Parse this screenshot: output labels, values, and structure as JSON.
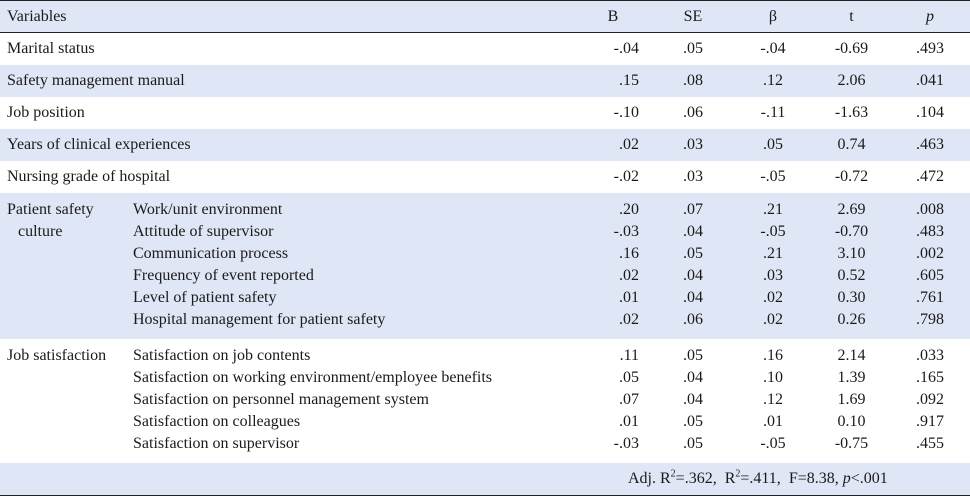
{
  "headers": {
    "variables": "Variables",
    "B": "B",
    "SE": "SE",
    "beta": "β",
    "t": "t",
    "p": "p"
  },
  "rows": [
    {
      "variable": "Marital status",
      "B": "-.04",
      "SE": ".05",
      "beta": "-.04",
      "t": "-0.69",
      "p": ".493"
    },
    {
      "variable": "Safety management manual",
      "B": ".15",
      "SE": ".08",
      "beta": ".12",
      "t": "2.06",
      "p": ".041"
    },
    {
      "variable": "Job position",
      "B": "-.10",
      "SE": ".06",
      "beta": "-.11",
      "t": "-1.63",
      "p": ".104"
    },
    {
      "variable": "Years of clinical experiences",
      "B": ".02",
      "SE": ".03",
      "beta": ".05",
      "t": "0.74",
      "p": ".463"
    },
    {
      "variable": "Nursing grade of hospital",
      "B": "-.02",
      "SE": ".03",
      "beta": "-.05",
      "t": "-0.72",
      "p": ".472"
    }
  ],
  "groups": {
    "psc": {
      "label_line1": "Patient safety",
      "label_line2": "culture",
      "items": [
        {
          "name": "Work/unit environment",
          "B": ".20",
          "SE": ".07",
          "beta": ".21",
          "t": "2.69",
          "p": ".008"
        },
        {
          "name": "Attitude of supervisor",
          "B": "-.03",
          "SE": ".04",
          "beta": "-.05",
          "t": "-0.70",
          "p": ".483"
        },
        {
          "name": "Communication process",
          "B": ".16",
          "SE": ".05",
          "beta": ".21",
          "t": "3.10",
          "p": ".002"
        },
        {
          "name": "Frequency of event reported",
          "B": ".02",
          "SE": ".04",
          "beta": ".03",
          "t": "0.52",
          "p": ".605"
        },
        {
          "name": "Level of patient safety",
          "B": ".01",
          "SE": ".04",
          "beta": ".02",
          "t": "0.30",
          "p": ".761"
        },
        {
          "name": "Hospital management for patient safety",
          "B": ".02",
          "SE": ".06",
          "beta": ".02",
          "t": "0.26",
          "p": ".798"
        }
      ]
    },
    "js": {
      "label_line1": "Job satisfaction",
      "items": [
        {
          "name": "Satisfaction on job contents",
          "B": ".11",
          "SE": ".05",
          "beta": ".16",
          "t": "2.14",
          "p": ".033"
        },
        {
          "name": "Satisfaction on working environment/employee benefits",
          "B": ".05",
          "SE": ".04",
          "beta": ".10",
          "t": "1.39",
          "p": ".165"
        },
        {
          "name": "Satisfaction on personnel management system",
          "B": ".07",
          "SE": ".04",
          "beta": ".12",
          "t": "1.69",
          "p": ".092"
        },
        {
          "name": "Satisfaction on colleagues",
          "B": ".01",
          "SE": ".05",
          "beta": ".01",
          "t": "0.10",
          "p": ".917"
        },
        {
          "name": "Satisfaction on supervisor",
          "B": "-.03",
          "SE": ".05",
          "beta": "-.05",
          "t": "-0.75",
          "p": ".455"
        }
      ]
    }
  },
  "footer": {
    "adj_prefix": "Adj. R",
    "adj_sup": "2",
    "adj_value": "=.362,",
    "r_prefix": "R",
    "r_sup": "2",
    "r_value": "=.411,",
    "f_text": "F=8.38,",
    "p_label": "p",
    "p_value": "<.001"
  },
  "colors": {
    "band": "#dfe6f5",
    "rule": "#222222"
  }
}
